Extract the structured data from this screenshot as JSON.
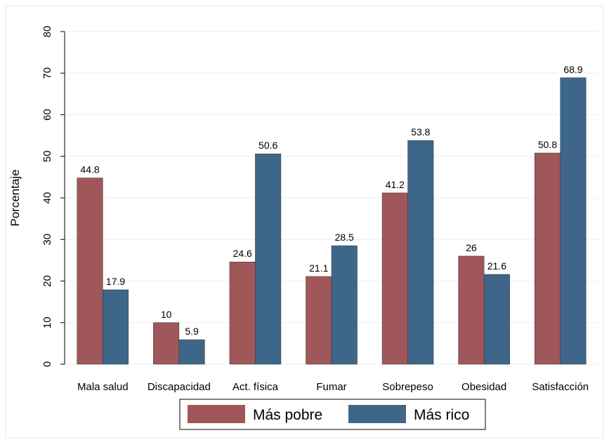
{
  "chart_data": {
    "type": "bar",
    "title": "",
    "xlabel": "",
    "ylabel": "Porcentaje",
    "ylim": [
      0,
      80
    ],
    "yticks": [
      "0",
      "10",
      "20",
      "30",
      "40",
      "50",
      "60",
      "70",
      "80"
    ],
    "grid": true,
    "legend_position": "bottom",
    "categories": [
      "Mala salud",
      "Discapacidad",
      "Act. física",
      "Fumar",
      "Sobrepeso",
      "Obesidad",
      "Satisfacción"
    ],
    "series": [
      {
        "name": "Más pobre",
        "color": "#A0575A",
        "values": [
          44.8,
          10,
          24.6,
          21.1,
          41.2,
          26,
          50.8
        ],
        "labels": [
          "44.8",
          "10",
          "24.6",
          "21.1",
          "41.2",
          "26",
          "50.8"
        ]
      },
      {
        "name": "Más rico",
        "color": "#3E6689",
        "values": [
          17.9,
          5.9,
          50.6,
          28.5,
          53.8,
          21.6,
          68.9
        ],
        "labels": [
          "17.9",
          "5.9",
          "50.6",
          "28.5",
          "53.8",
          "21.6",
          "68.9"
        ]
      }
    ]
  }
}
